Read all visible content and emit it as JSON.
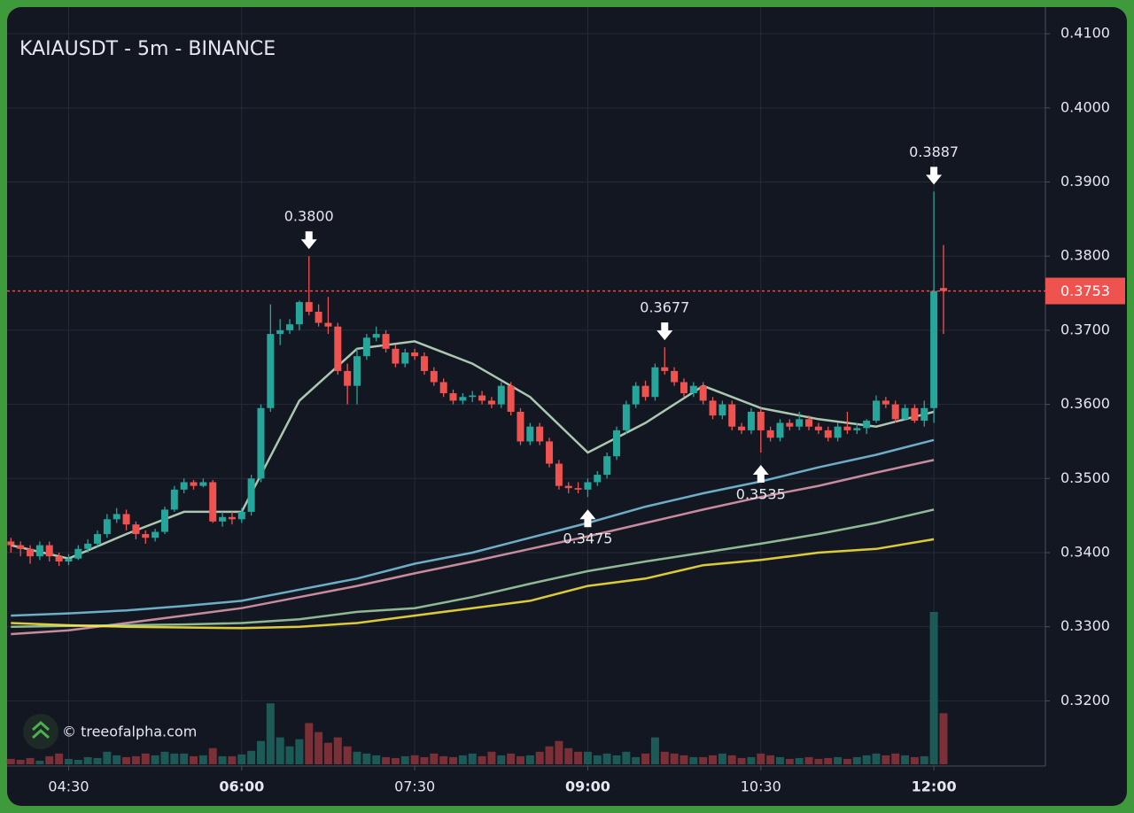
{
  "chart_data": {
    "type": "candlestick",
    "title": "KAIAUSDT - 5m - BINANCE",
    "watermark": "© treeofalpha.com",
    "x": [
      "04:00",
      "04:05",
      "04:10",
      "04:15",
      "04:20",
      "04:25",
      "04:30",
      "04:35",
      "04:40",
      "04:45",
      "04:50",
      "04:55",
      "05:00",
      "05:05",
      "05:10",
      "05:15",
      "05:20",
      "05:25",
      "05:30",
      "05:35",
      "05:40",
      "05:45",
      "05:50",
      "05:55",
      "06:00",
      "06:05",
      "06:10",
      "06:15",
      "06:20",
      "06:25",
      "06:30",
      "06:35",
      "06:40",
      "06:45",
      "06:50",
      "06:55",
      "07:00",
      "07:05",
      "07:10",
      "07:15",
      "07:20",
      "07:25",
      "07:30",
      "07:35",
      "07:40",
      "07:45",
      "07:50",
      "07:55",
      "08:00",
      "08:05",
      "08:10",
      "08:15",
      "08:20",
      "08:25",
      "08:30",
      "08:35",
      "08:40",
      "08:45",
      "08:50",
      "08:55",
      "09:00",
      "09:05",
      "09:10",
      "09:15",
      "09:20",
      "09:25",
      "09:30",
      "09:35",
      "09:40",
      "09:45",
      "09:50",
      "09:55",
      "10:00",
      "10:05",
      "10:10",
      "10:15",
      "10:20",
      "10:25",
      "10:30",
      "10:35",
      "10:40",
      "10:45",
      "10:50",
      "10:55",
      "11:00",
      "11:05",
      "11:10",
      "11:15",
      "11:20",
      "11:25",
      "11:30",
      "11:35",
      "11:40",
      "11:45",
      "11:50",
      "11:55",
      "12:00",
      "12:05"
    ],
    "open": [
      0.3415,
      0.341,
      0.3405,
      0.3395,
      0.341,
      0.3395,
      0.3388,
      0.3392,
      0.3405,
      0.3412,
      0.3425,
      0.3445,
      0.3452,
      0.3438,
      0.3425,
      0.342,
      0.3428,
      0.3458,
      0.3485,
      0.3495,
      0.349,
      0.3495,
      0.3442,
      0.3448,
      0.3445,
      0.3455,
      0.35,
      0.3595,
      0.3695,
      0.37,
      0.3708,
      0.3738,
      0.3725,
      0.371,
      0.3705,
      0.3645,
      0.3625,
      0.3665,
      0.369,
      0.3695,
      0.3675,
      0.3655,
      0.367,
      0.3665,
      0.3645,
      0.363,
      0.3615,
      0.3605,
      0.361,
      0.3612,
      0.3605,
      0.36,
      0.3625,
      0.359,
      0.355,
      0.357,
      0.355,
      0.352,
      0.349,
      0.3487,
      0.3485,
      0.3495,
      0.3505,
      0.353,
      0.3565,
      0.36,
      0.3625,
      0.361,
      0.365,
      0.3645,
      0.363,
      0.3615,
      0.3625,
      0.3605,
      0.3585,
      0.36,
      0.357,
      0.3565,
      0.359,
      0.3565,
      0.3555,
      0.3575,
      0.357,
      0.358,
      0.357,
      0.3565,
      0.3555,
      0.357,
      0.3565,
      0.3568,
      0.3578,
      0.3605,
      0.36,
      0.358,
      0.3595,
      0.3578,
      0.3595,
      0.3757
    ],
    "high": [
      0.342,
      0.3415,
      0.341,
      0.3415,
      0.3415,
      0.34,
      0.3398,
      0.341,
      0.3418,
      0.343,
      0.3452,
      0.346,
      0.3458,
      0.3442,
      0.343,
      0.3432,
      0.3462,
      0.349,
      0.35,
      0.3498,
      0.35,
      0.3498,
      0.3455,
      0.3455,
      0.346,
      0.3505,
      0.36,
      0.3735,
      0.3715,
      0.3715,
      0.374,
      0.38,
      0.3735,
      0.3745,
      0.371,
      0.3655,
      0.3675,
      0.3695,
      0.3705,
      0.37,
      0.368,
      0.3675,
      0.3675,
      0.367,
      0.365,
      0.3635,
      0.362,
      0.3615,
      0.3618,
      0.3618,
      0.361,
      0.363,
      0.363,
      0.3595,
      0.3575,
      0.3575,
      0.3555,
      0.3525,
      0.3495,
      0.3495,
      0.35,
      0.351,
      0.3535,
      0.357,
      0.3605,
      0.363,
      0.3632,
      0.3655,
      0.3677,
      0.365,
      0.3635,
      0.363,
      0.363,
      0.361,
      0.3605,
      0.3605,
      0.3575,
      0.3595,
      0.3595,
      0.357,
      0.358,
      0.358,
      0.359,
      0.3585,
      0.3575,
      0.357,
      0.3575,
      0.359,
      0.3575,
      0.358,
      0.3612,
      0.361,
      0.3605,
      0.36,
      0.36,
      0.3605,
      0.3887,
      0.3815
    ],
    "low": [
      0.34,
      0.3395,
      0.3385,
      0.339,
      0.3388,
      0.3382,
      0.3383,
      0.339,
      0.34,
      0.3408,
      0.342,
      0.344,
      0.343,
      0.3418,
      0.3412,
      0.3415,
      0.3425,
      0.3455,
      0.348,
      0.3485,
      0.3488,
      0.344,
      0.3435,
      0.3438,
      0.344,
      0.345,
      0.3495,
      0.359,
      0.368,
      0.3695,
      0.37,
      0.372,
      0.3705,
      0.3695,
      0.364,
      0.36,
      0.36,
      0.366,
      0.3685,
      0.367,
      0.365,
      0.365,
      0.366,
      0.364,
      0.3625,
      0.361,
      0.36,
      0.36,
      0.3603,
      0.36,
      0.3595,
      0.3595,
      0.3585,
      0.3545,
      0.3545,
      0.3545,
      0.3515,
      0.3485,
      0.348,
      0.348,
      0.3475,
      0.349,
      0.35,
      0.3525,
      0.356,
      0.3595,
      0.3605,
      0.3605,
      0.364,
      0.3625,
      0.361,
      0.361,
      0.36,
      0.358,
      0.358,
      0.3565,
      0.356,
      0.356,
      0.3535,
      0.355,
      0.355,
      0.3565,
      0.3565,
      0.3565,
      0.356,
      0.355,
      0.355,
      0.356,
      0.356,
      0.356,
      0.3575,
      0.3595,
      0.3575,
      0.3578,
      0.3575,
      0.357,
      0.3575,
      0.3695
    ],
    "close": [
      0.341,
      0.3405,
      0.3395,
      0.341,
      0.3395,
      0.3388,
      0.3392,
      0.3405,
      0.3412,
      0.3425,
      0.3445,
      0.3452,
      0.3438,
      0.3425,
      0.342,
      0.3428,
      0.3458,
      0.3485,
      0.3495,
      0.349,
      0.3495,
      0.3442,
      0.3448,
      0.3445,
      0.3455,
      0.35,
      0.3595,
      0.3695,
      0.37,
      0.3708,
      0.3738,
      0.3725,
      0.371,
      0.3705,
      0.3645,
      0.3625,
      0.3665,
      0.369,
      0.3695,
      0.3675,
      0.3655,
      0.367,
      0.3665,
      0.3645,
      0.363,
      0.3615,
      0.3605,
      0.361,
      0.3612,
      0.3605,
      0.36,
      0.3625,
      0.359,
      0.355,
      0.357,
      0.355,
      0.352,
      0.349,
      0.3487,
      0.3485,
      0.3495,
      0.3505,
      0.353,
      0.3565,
      0.36,
      0.3625,
      0.361,
      0.365,
      0.3645,
      0.363,
      0.3615,
      0.3625,
      0.3605,
      0.3585,
      0.36,
      0.357,
      0.3565,
      0.359,
      0.3565,
      0.3555,
      0.3575,
      0.357,
      0.358,
      0.357,
      0.3565,
      0.3555,
      0.357,
      0.3565,
      0.3568,
      0.3578,
      0.3605,
      0.36,
      0.358,
      0.3595,
      0.3578,
      0.3595,
      0.3753,
      0.3753
    ],
    "volume": [
      6,
      5,
      7,
      4,
      9,
      12,
      6,
      5,
      8,
      7,
      14,
      10,
      8,
      9,
      12,
      10,
      14,
      12,
      12,
      9,
      10,
      18,
      9,
      9,
      11,
      15,
      26,
      68,
      30,
      20,
      28,
      46,
      36,
      24,
      30,
      20,
      14,
      12,
      10,
      8,
      7,
      9,
      10,
      8,
      12,
      9,
      8,
      10,
      12,
      9,
      14,
      10,
      12,
      9,
      10,
      14,
      20,
      26,
      18,
      14,
      14,
      10,
      12,
      10,
      14,
      8,
      12,
      30,
      14,
      12,
      10,
      8,
      8,
      10,
      12,
      10,
      7,
      8,
      12,
      10,
      8,
      6,
      7,
      8,
      6,
      7,
      8,
      6,
      8,
      10,
      12,
      10,
      12,
      10,
      8,
      9,
      170,
      57
    ],
    "up_color": "#26a69a",
    "down_color": "#ef5350",
    "volume_up_color": "#1b5a56",
    "volume_down_color": "#7b2f36",
    "ma_x": [
      "04:00",
      "04:30",
      "05:00",
      "05:30",
      "06:00",
      "06:30",
      "07:00",
      "07:30",
      "08:00",
      "08:30",
      "09:00",
      "09:30",
      "10:00",
      "10:30",
      "11:00",
      "11:30",
      "12:00"
    ],
    "moving_averages": [
      {
        "color": "#7ec8e3",
        "values": [
          0.3315,
          0.3318,
          0.3322,
          0.3328,
          0.3335,
          0.335,
          0.3365,
          0.3385,
          0.34,
          0.342,
          0.344,
          0.3462,
          0.348,
          0.3496,
          0.3515,
          0.3532,
          0.3552
        ]
      },
      {
        "color": "#e8a0b4",
        "values": [
          0.329,
          0.3295,
          0.3305,
          0.3315,
          0.3325,
          0.334,
          0.3355,
          0.3372,
          0.3388,
          0.3405,
          0.3422,
          0.344,
          0.3458,
          0.3475,
          0.349,
          0.3508,
          0.3525
        ]
      },
      {
        "color": "#a5d6a7",
        "values": [
          0.33,
          0.3301,
          0.3302,
          0.3303,
          0.3305,
          0.331,
          0.332,
          0.3325,
          0.334,
          0.3358,
          0.3375,
          0.3388,
          0.34,
          0.3412,
          0.3425,
          0.344,
          0.3458
        ]
      },
      {
        "color": "#ffeb3b",
        "values": [
          0.3305,
          0.3302,
          0.33,
          0.3299,
          0.3298,
          0.33,
          0.3305,
          0.3315,
          0.3325,
          0.3335,
          0.3355,
          0.3365,
          0.3383,
          0.339,
          0.34,
          0.3405,
          0.3418
        ]
      },
      {
        "color": "#c8e6c9",
        "values": [
          0.341,
          0.3392,
          0.3425,
          0.3455,
          0.3455,
          0.3605,
          0.3675,
          0.3685,
          0.3655,
          0.361,
          0.3535,
          0.3575,
          0.3625,
          0.3595,
          0.358,
          0.357,
          0.359
        ]
      }
    ],
    "annotations": [
      {
        "x": "06:35",
        "value": 0.38,
        "label": "0.3800",
        "direction": "down"
      },
      {
        "x": "09:00",
        "value": 0.3475,
        "label": "0.3475",
        "direction": "up"
      },
      {
        "x": "09:40",
        "value": 0.3677,
        "label": "0.3677",
        "direction": "down"
      },
      {
        "x": "10:30",
        "value": 0.3535,
        "label": "0.3535",
        "direction": "up"
      },
      {
        "x": "12:00",
        "value": 0.3887,
        "label": "0.3887",
        "direction": "down"
      }
    ],
    "last_price": {
      "value": 0.3753,
      "label": "0.3753",
      "color": "#ef5350"
    },
    "xlim": [
      "03:58",
      "12:58"
    ],
    "xticks": [
      "04:30",
      "06:00",
      "07:30",
      "09:00",
      "10:30",
      "12:00"
    ],
    "ylim": [
      0.3112,
      0.4136
    ],
    "yticks": [
      {
        "value": 0.32,
        "label": "0.3200"
      },
      {
        "value": 0.33,
        "label": "0.3300"
      },
      {
        "value": 0.34,
        "label": "0.3400"
      },
      {
        "value": 0.35,
        "label": "0.3500"
      },
      {
        "value": 0.36,
        "label": "0.3600"
      },
      {
        "value": 0.37,
        "label": "0.3700"
      },
      {
        "value": 0.38,
        "label": "0.3800"
      },
      {
        "value": 0.39,
        "label": "0.3900"
      },
      {
        "value": 0.4,
        "label": "0.4000"
      },
      {
        "value": 0.41,
        "label": "0.4100"
      }
    ],
    "grid": true
  }
}
